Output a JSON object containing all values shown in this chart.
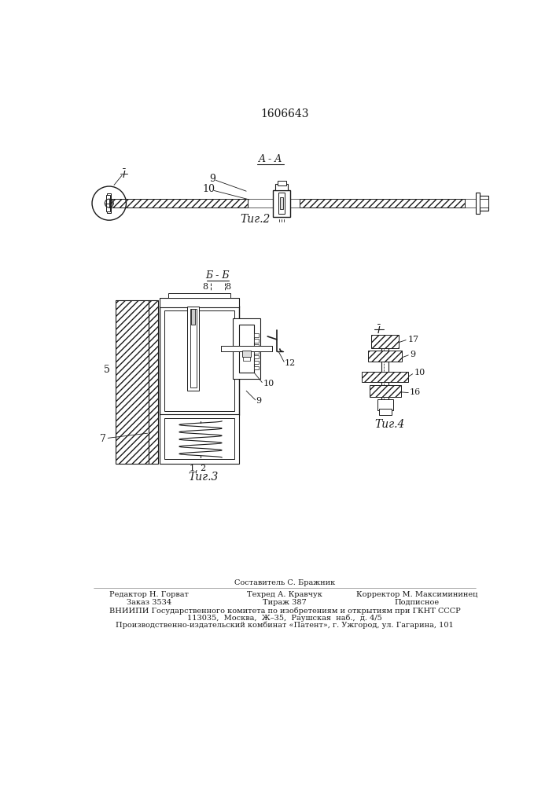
{
  "title": "1606643",
  "fig2_label": "Τиг.2",
  "fig3_label": "Τиг.3",
  "fig4_label": "Τиг.4",
  "section_aa": "A - A",
  "section_bb": "Б - Б",
  "bg_color": "#ffffff",
  "line_color": "#1a1a1a",
  "footer_col1_line1": "Редактор Н. Горват",
  "footer_col1_line2": "Заказ 3534",
  "footer_col2_line0": "Составитель С. Бражник",
  "footer_col2_line1": "Техред А. Кравчук",
  "footer_col2_line2": "Тираж 387",
  "footer_col3_line1": "Корректор М. Максимининец",
  "footer_col3_line2": "Подписное",
  "footer_line3": "ВНИИПИ Государственного комитета по изобретениям и открытиям при ГКНТ СССР",
  "footer_line4": "113035,  Москва,  Ж–35,  Раушская  наб.,  д. 4/5",
  "footer_line5": "Производственно-издательский комбинат «Патент», г. Ужгород, ул. Гагарина, 101"
}
